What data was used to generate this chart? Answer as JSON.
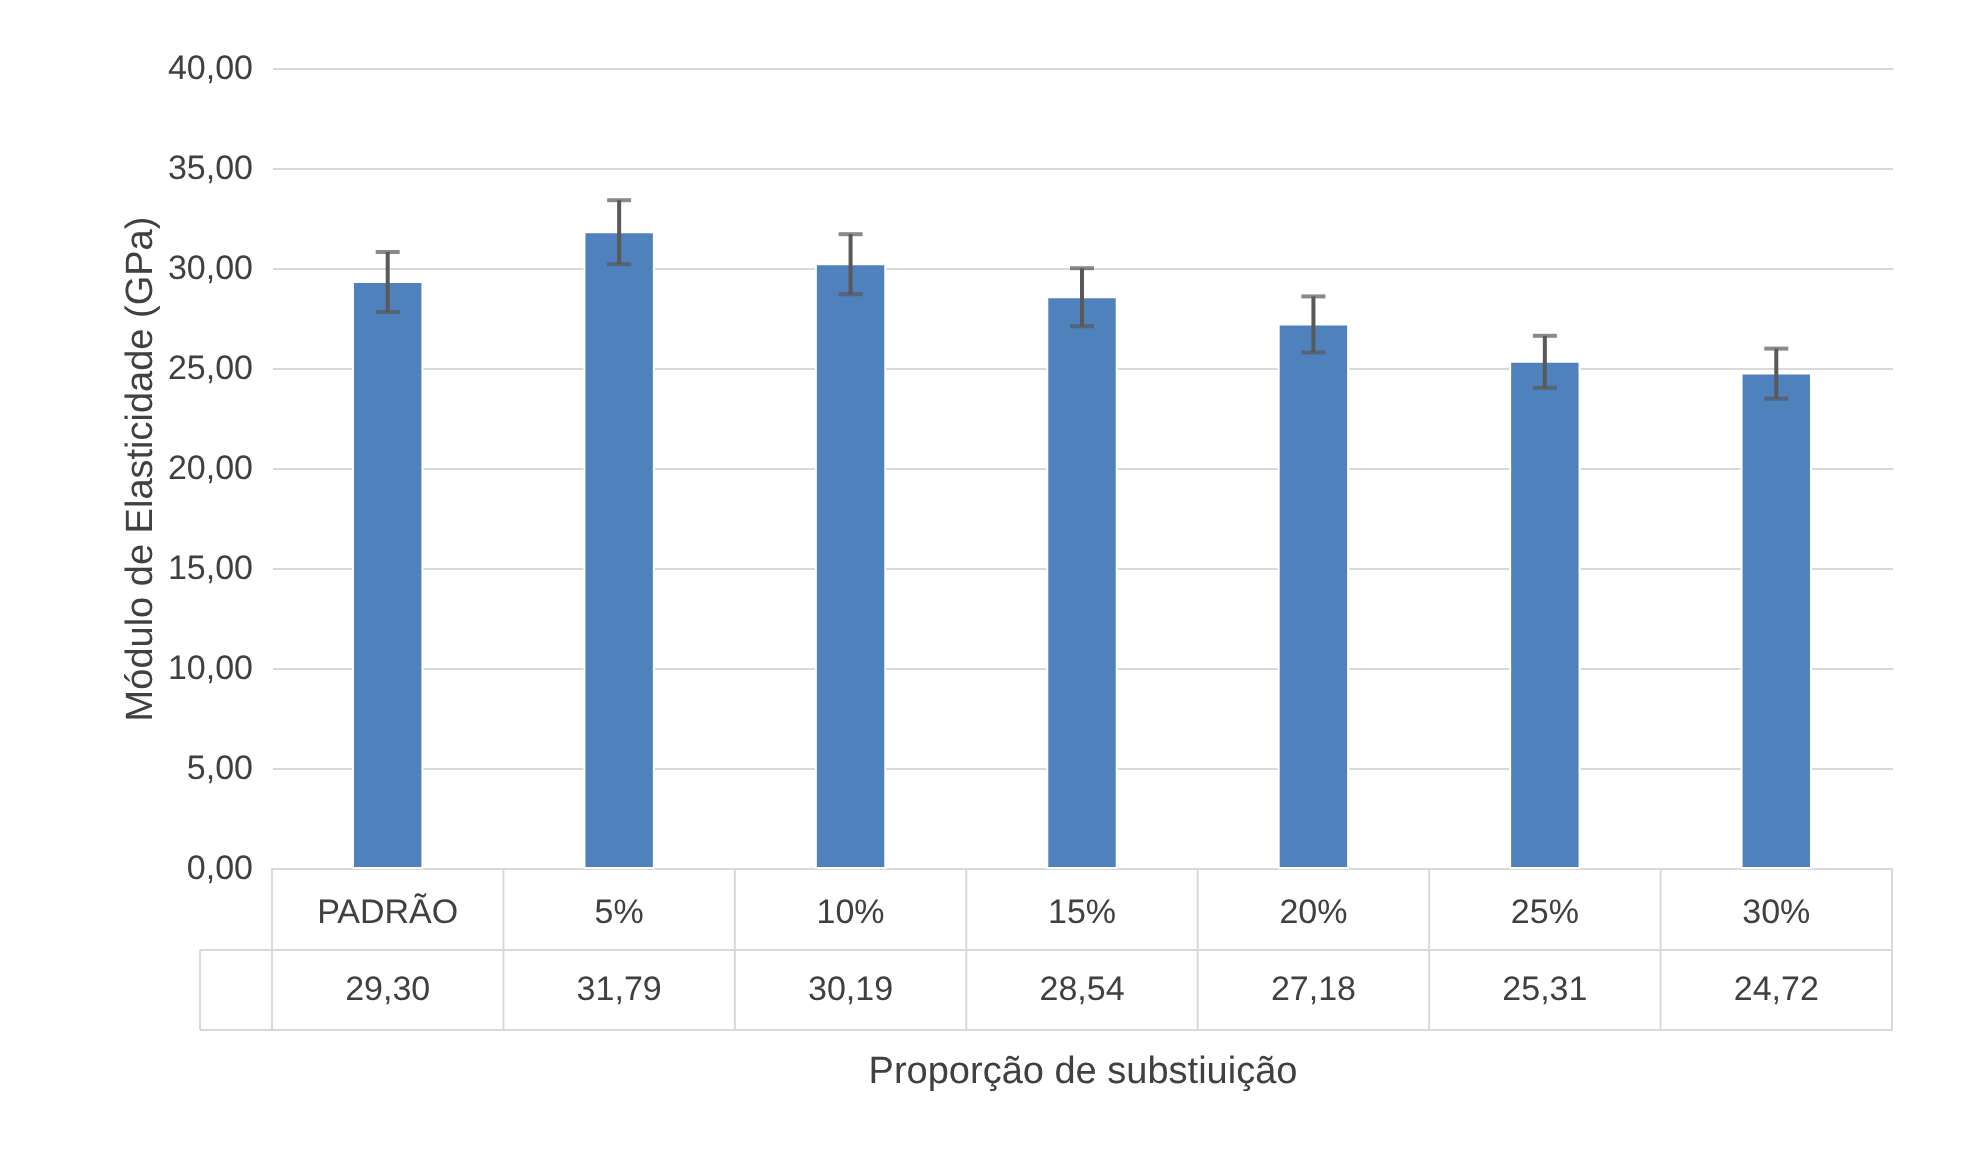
{
  "chart_data": {
    "type": "bar",
    "xlabel": "Proporção de substiuição",
    "ylabel": "Módulo de Elasticidade (GPa)",
    "categories": [
      "PADRÃO",
      "5%",
      "10%",
      "15%",
      "20%",
      "25%",
      "30%"
    ],
    "values": [
      29.3,
      31.79,
      30.19,
      28.54,
      27.18,
      25.31,
      24.72
    ],
    "value_labels": [
      "29,30",
      "31,79",
      "30,19",
      "28,54",
      "27,18",
      "25,31",
      "24,72"
    ],
    "errors": [
      1.5,
      1.6,
      1.5,
      1.45,
      1.4,
      1.3,
      1.25
    ],
    "color": "#4f81bd",
    "ylim": [
      0,
      40
    ],
    "yticks": [
      {
        "value": 0,
        "label": "0,00"
      },
      {
        "value": 5,
        "label": "5,00"
      },
      {
        "value": 10,
        "label": "10,00"
      },
      {
        "value": 15,
        "label": "15,00"
      },
      {
        "value": 20,
        "label": "20,00"
      },
      {
        "value": 25,
        "label": "25,00"
      },
      {
        "value": 30,
        "label": "30,00"
      },
      {
        "value": 35,
        "label": "35,00"
      },
      {
        "value": 40,
        "label": "40,00"
      }
    ],
    "grid": "y"
  }
}
